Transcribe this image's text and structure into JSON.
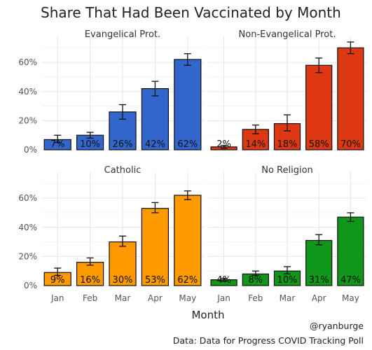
{
  "chart_data": {
    "type": "bar",
    "title": "Share That Had Been Vaccinated by Month",
    "xlabel": "Month",
    "ylabel": "",
    "categories": [
      "Jan",
      "Feb",
      "Mar",
      "Apr",
      "May"
    ],
    "y_ticks": [
      "0%",
      "20%",
      "40%",
      "60%"
    ],
    "ylim": [
      0,
      0.74
    ],
    "grid": true,
    "legend": "none",
    "facets": [
      {
        "name": "Evangelical Prot.",
        "color": "#3366CC",
        "values": [
          0.07,
          0.1,
          0.26,
          0.42,
          0.62
        ],
        "labels": [
          "7%",
          "10%",
          "26%",
          "42%",
          "62%"
        ],
        "err_low": [
          0.05,
          0.08,
          0.21,
          0.37,
          0.58
        ],
        "err_high": [
          0.1,
          0.12,
          0.31,
          0.47,
          0.66
        ]
      },
      {
        "name": "Non-Evangelical Prot.",
        "color": "#DC3912",
        "values": [
          0.02,
          0.14,
          0.18,
          0.58,
          0.7
        ],
        "labels": [
          "2%",
          "14%",
          "18%",
          "58%",
          "70%"
        ],
        "err_low": [
          0.01,
          0.11,
          0.13,
          0.53,
          0.66
        ],
        "err_high": [
          0.03,
          0.17,
          0.24,
          0.63,
          0.74
        ]
      },
      {
        "name": "Catholic",
        "color": "#FF9900",
        "values": [
          0.09,
          0.16,
          0.3,
          0.53,
          0.62
        ],
        "labels": [
          "9%",
          "16%",
          "30%",
          "53%",
          "62%"
        ],
        "err_low": [
          0.07,
          0.14,
          0.27,
          0.5,
          0.59
        ],
        "err_high": [
          0.12,
          0.19,
          0.34,
          0.57,
          0.65
        ]
      },
      {
        "name": "No Religion",
        "color": "#109618",
        "values": [
          0.04,
          0.08,
          0.1,
          0.31,
          0.47
        ],
        "labels": [
          "4%",
          "8%",
          "10%",
          "31%",
          "47%"
        ],
        "err_low": [
          0.03,
          0.07,
          0.08,
          0.28,
          0.44
        ],
        "err_high": [
          0.05,
          0.1,
          0.13,
          0.35,
          0.5
        ]
      }
    ],
    "caption_lines": [
      "@ryanburge",
      "Data: Data for Progress COVID Tracking Poll"
    ]
  }
}
